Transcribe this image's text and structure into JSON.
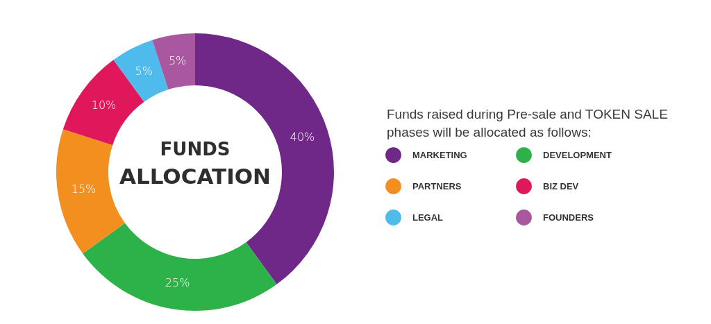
{
  "chart_data": {
    "type": "donut",
    "title": "FUNDS",
    "subtitle": "ALLOCATION",
    "categories": [
      "MARKETING",
      "DEVELOPMENT",
      "PARTNERS",
      "BIZ DEV",
      "LEGAL",
      "FOUNDERS"
    ],
    "values": [
      40,
      25,
      15,
      10,
      5,
      5
    ],
    "value_labels": [
      "40%",
      "25%",
      "15%",
      "10%",
      "5%",
      "5%"
    ],
    "colors": [
      "#6f2788",
      "#2db24a",
      "#f28f1f",
      "#e0175a",
      "#4dbbeb",
      "#a9589f"
    ],
    "legend": "right",
    "annotations": [
      "Funds raised during Pre-sale and TOKEN SALE phases will be allocated as follows:"
    ]
  }
}
